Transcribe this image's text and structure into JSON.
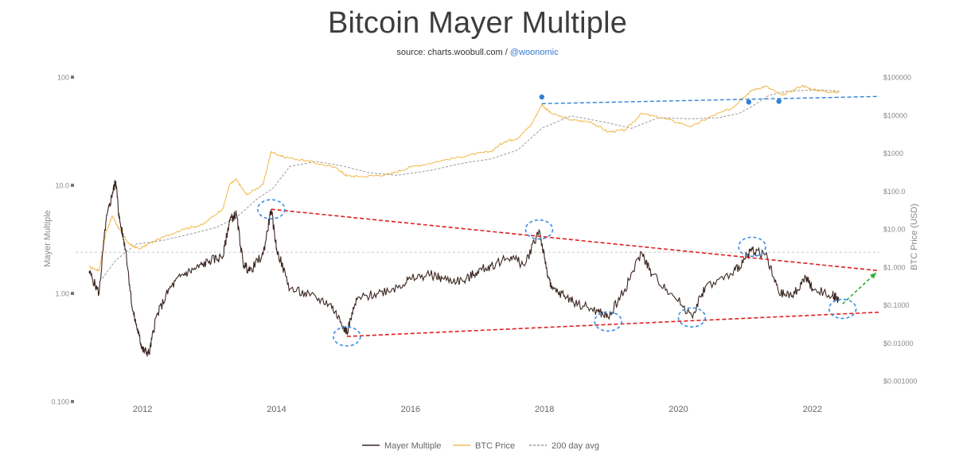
{
  "title": "Bitcoin Mayer Multiple",
  "subtitle": {
    "prefix": "source: charts.woobull.com / ",
    "handle": "@woonomic"
  },
  "colors": {
    "mayer_multiple": "#3b2620",
    "btc_price": "#f2bd58",
    "avg_200d": "#9a9a9a",
    "resistance_line": "#e01e1e",
    "support_line": "#e01e1e",
    "price_trendline": "#2f82d6",
    "circle_marker": "#3a8ee6",
    "projection_arrow": "#2db02d"
  },
  "chart_data": {
    "type": "line",
    "title": "Bitcoin Mayer Multiple",
    "subtitle": "source: charts.woobull.com / @woonomic",
    "x_axis": {
      "ticks": [
        "2012",
        "2014",
        "2016",
        "2018",
        "2020",
        "2022"
      ],
      "range": [
        2011.0,
        2023.0
      ]
    },
    "y_left": {
      "label": "Mayer Multiple",
      "scale": "log",
      "ticks": [
        "100",
        "10.0",
        "1.00",
        "0.100"
      ],
      "range": [
        0.1,
        100
      ]
    },
    "y_right": {
      "label": "BTC Price (USD)",
      "scale": "log",
      "ticks": [
        "$100000",
        "$10000",
        "$1000",
        "$100.0",
        "$10.00",
        "$1.000",
        "$0.1000",
        "$0.01000",
        "$0.001000"
      ],
      "range": [
        0.001,
        100000
      ]
    },
    "grid": false,
    "legend_position": "bottom",
    "reference_line": {
      "axis": "left",
      "value": 2.4
    },
    "series": [
      {
        "name": "Mayer Multiple",
        "axis": "left",
        "x": [
          2011.2,
          2011.35,
          2011.45,
          2011.55,
          2011.6,
          2011.65,
          2011.75,
          2011.85,
          2011.95,
          2012.0,
          2012.1,
          2012.2,
          2012.4,
          2012.6,
          2012.8,
          2013.0,
          2013.2,
          2013.3,
          2013.4,
          2013.5,
          2013.6,
          2013.8,
          2013.92,
          2014.0,
          2014.2,
          2014.5,
          2014.8,
          2015.0,
          2015.05,
          2015.2,
          2015.5,
          2015.8,
          2016.0,
          2016.3,
          2016.5,
          2016.8,
          2017.0,
          2017.2,
          2017.5,
          2017.7,
          2017.92,
          2018.0,
          2018.1,
          2018.3,
          2018.5,
          2018.8,
          2018.95,
          2019.2,
          2019.45,
          2019.6,
          2019.9,
          2020.2,
          2020.4,
          2020.8,
          2021.0,
          2021.1,
          2021.3,
          2021.5,
          2021.7,
          2021.9,
          2022.0,
          2022.3,
          2022.4
        ],
        "y": [
          1.6,
          1.0,
          4.5,
          8.5,
          11.0,
          5.0,
          2.5,
          0.7,
          0.4,
          0.3,
          0.28,
          0.6,
          1.1,
          1.5,
          1.7,
          2.0,
          2.2,
          4.8,
          5.4,
          1.9,
          1.6,
          2.3,
          6.0,
          2.6,
          1.1,
          0.95,
          0.8,
          0.5,
          0.44,
          0.88,
          1.0,
          1.15,
          1.35,
          1.5,
          1.35,
          1.3,
          1.6,
          1.8,
          2.2,
          1.8,
          3.9,
          2.1,
          1.1,
          0.95,
          0.8,
          0.68,
          0.6,
          1.1,
          2.4,
          1.5,
          1.0,
          0.62,
          1.15,
          1.5,
          2.1,
          2.55,
          2.3,
          1.0,
          0.95,
          1.4,
          1.1,
          0.96,
          0.88
        ]
      },
      {
        "name": "BTC Price",
        "axis": "right",
        "x": [
          2011.2,
          2011.35,
          2011.45,
          2011.55,
          2011.65,
          2011.8,
          2011.95,
          2012.2,
          2012.6,
          2012.9,
          2013.2,
          2013.3,
          2013.4,
          2013.55,
          2013.8,
          2013.92,
          2014.1,
          2014.5,
          2014.9,
          2015.05,
          2015.3,
          2015.7,
          2016.0,
          2016.5,
          2016.9,
          2017.2,
          2017.4,
          2017.6,
          2017.8,
          2017.96,
          2018.1,
          2018.4,
          2018.7,
          2018.95,
          2019.2,
          2019.45,
          2019.8,
          2020.2,
          2020.5,
          2020.8,
          2020.95,
          2021.1,
          2021.3,
          2021.55,
          2021.85,
          2022.0,
          2022.2,
          2022.4
        ],
        "y": [
          1.0,
          0.8,
          8.0,
          22.0,
          10.0,
          4.0,
          3.0,
          5.0,
          10.0,
          13.0,
          35.0,
          150.0,
          200.0,
          80.0,
          150.0,
          1100.0,
          800.0,
          600.0,
          400.0,
          250.0,
          240.0,
          280.0,
          430.0,
          650.0,
          900.0,
          1100.0,
          2000.0,
          2500.0,
          5500.0,
          19000.0,
          11000.0,
          7500.0,
          6500.0,
          3600.0,
          4000.0,
          11000.0,
          8000.0,
          5000.0,
          9500.0,
          15000.0,
          28000.0,
          45000.0,
          58000.0,
          33000.0,
          60000.0,
          47000.0,
          42000.0,
          39000.0
        ]
      },
      {
        "name": "200 day avg",
        "axis": "right",
        "x": [
          2011.4,
          2011.6,
          2011.9,
          2012.3,
          2012.8,
          2013.1,
          2013.4,
          2013.7,
          2013.95,
          2014.2,
          2014.6,
          2015.0,
          2015.4,
          2015.8,
          2016.3,
          2016.8,
          2017.2,
          2017.6,
          2017.96,
          2018.4,
          2018.9,
          2019.3,
          2019.7,
          2020.2,
          2020.6,
          2020.9,
          2021.1,
          2021.35,
          2021.6,
          2021.9,
          2022.1,
          2022.4
        ],
        "y": [
          0.5,
          1.5,
          4.0,
          5.0,
          8.0,
          11.0,
          20.0,
          60.0,
          120.0,
          450.0,
          600.0,
          450.0,
          300.0,
          260.0,
          350.0,
          550.0,
          700.0,
          1200.0,
          4500.0,
          9500.0,
          6500.0,
          4500.0,
          8500.0,
          8000.0,
          8500.0,
          11000.0,
          17000.0,
          33000.0,
          42000.0,
          45000.0,
          46000.0,
          43000.0
        ]
      }
    ],
    "annotations": {
      "resistance_line": {
        "axis": "left",
        "from": [
          2013.92,
          6.0
        ],
        "to": [
          2023.0,
          1.62
        ]
      },
      "support_line": {
        "axis": "left",
        "from": [
          2015.05,
          0.4
        ],
        "to": [
          2023.0,
          0.67
        ]
      },
      "price_trendline": {
        "axis": "right",
        "from": [
          2017.96,
          20000
        ],
        "to": [
          2023.0,
          31000
        ]
      },
      "price_markers": [
        {
          "axis": "right",
          "x": 2017.96,
          "y": 30000
        },
        {
          "axis": "right",
          "x": 2021.05,
          "y": 22000
        },
        {
          "axis": "right",
          "x": 2021.5,
          "y": 23000
        }
      ],
      "circled_points": [
        {
          "axis": "left",
          "x": 2013.92,
          "y": 6.0
        },
        {
          "axis": "left",
          "x": 2015.05,
          "y": 0.4
        },
        {
          "axis": "left",
          "x": 2017.92,
          "y": 3.9
        },
        {
          "axis": "left",
          "x": 2018.95,
          "y": 0.55
        },
        {
          "axis": "left",
          "x": 2020.2,
          "y": 0.6
        },
        {
          "axis": "left",
          "x": 2021.1,
          "y": 2.7
        },
        {
          "axis": "left",
          "x": 2022.45,
          "y": 0.72
        }
      ],
      "projection_arrow": {
        "axis": "left",
        "from": [
          2022.45,
          0.8
        ],
        "to": [
          2022.95,
          1.55
        ]
      }
    }
  }
}
